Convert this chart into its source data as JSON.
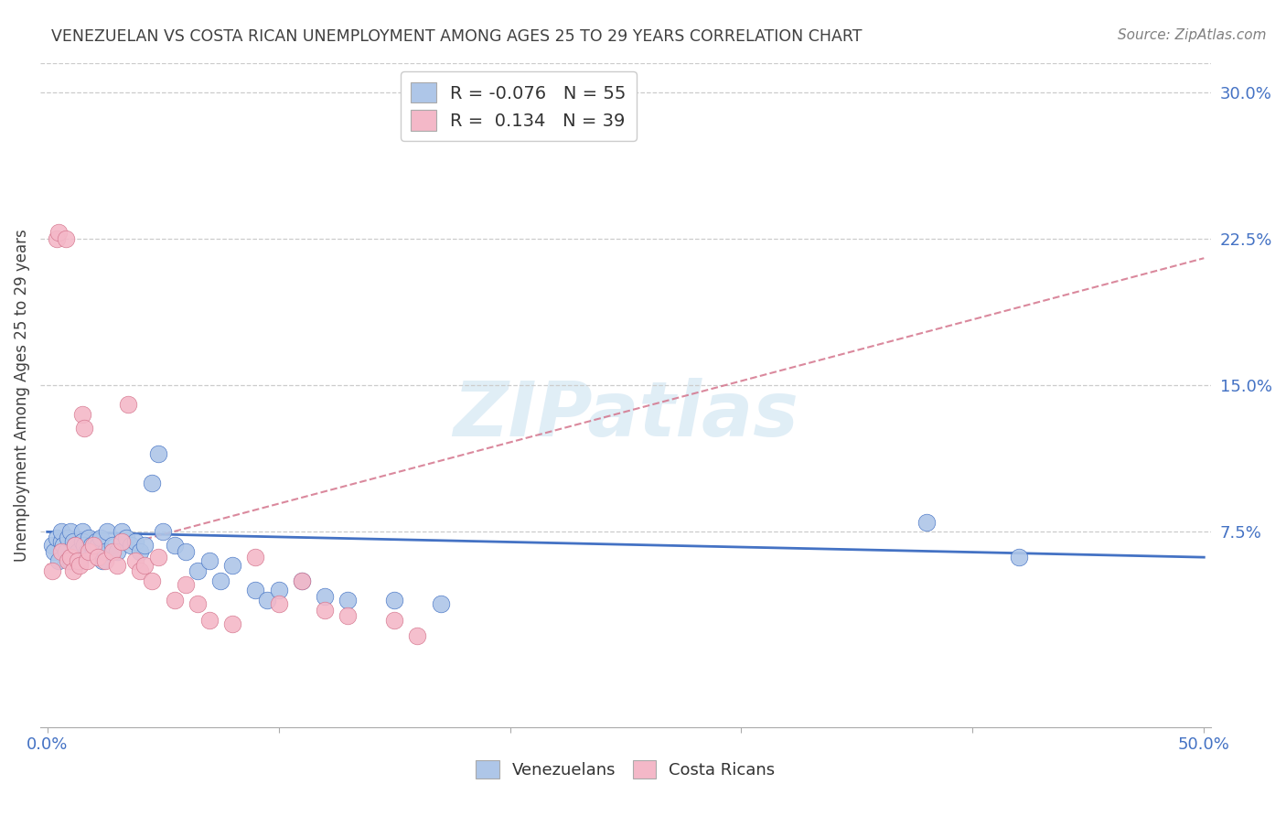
{
  "title": "VENEZUELAN VS COSTA RICAN UNEMPLOYMENT AMONG AGES 25 TO 29 YEARS CORRELATION CHART",
  "source": "Source: ZipAtlas.com",
  "ylabel": "Unemployment Among Ages 25 to 29 years",
  "xlim": [
    -0.003,
    0.503
  ],
  "ylim": [
    -0.025,
    0.315
  ],
  "xtick_positions": [
    0.0,
    0.1,
    0.2,
    0.3,
    0.4,
    0.5
  ],
  "xtick_labels": [
    "0.0%",
    "",
    "",
    "",
    "",
    "50.0%"
  ],
  "ytick_right_labels": [
    "7.5%",
    "15.0%",
    "22.5%",
    "30.0%"
  ],
  "ytick_right_values": [
    0.075,
    0.15,
    0.225,
    0.3
  ],
  "venezuelan_color": "#aec6e8",
  "costa_rican_color": "#f4b8c8",
  "trend_venezuelan_color": "#4472c4",
  "trend_costa_rican_color": "#d4748c",
  "R_venezuelan": -0.076,
  "N_venezuelan": 55,
  "R_costa_rican": 0.134,
  "N_costa_rican": 39,
  "watermark": "ZIPatlas",
  "background_color": "#ffffff",
  "grid_color": "#cccccc",
  "tick_color": "#4472c4",
  "title_color": "#404040",
  "source_color": "#808080",
  "ylabel_color": "#404040",
  "venezuelan_x": [
    0.002,
    0.003,
    0.004,
    0.005,
    0.006,
    0.006,
    0.007,
    0.008,
    0.009,
    0.01,
    0.01,
    0.011,
    0.012,
    0.013,
    0.014,
    0.015,
    0.015,
    0.016,
    0.017,
    0.018,
    0.019,
    0.02,
    0.021,
    0.022,
    0.023,
    0.024,
    0.025,
    0.026,
    0.028,
    0.03,
    0.032,
    0.034,
    0.036,
    0.038,
    0.04,
    0.042,
    0.045,
    0.048,
    0.05,
    0.055,
    0.06,
    0.065,
    0.07,
    0.075,
    0.08,
    0.09,
    0.095,
    0.1,
    0.11,
    0.12,
    0.13,
    0.15,
    0.17,
    0.38,
    0.42
  ],
  "venezuelan_y": [
    0.068,
    0.065,
    0.072,
    0.06,
    0.07,
    0.075,
    0.068,
    0.065,
    0.072,
    0.06,
    0.075,
    0.07,
    0.068,
    0.065,
    0.06,
    0.075,
    0.07,
    0.068,
    0.065,
    0.072,
    0.068,
    0.065,
    0.07,
    0.068,
    0.072,
    0.06,
    0.065,
    0.075,
    0.068,
    0.065,
    0.075,
    0.072,
    0.068,
    0.07,
    0.065,
    0.068,
    0.1,
    0.115,
    0.075,
    0.068,
    0.065,
    0.055,
    0.06,
    0.05,
    0.058,
    0.045,
    0.04,
    0.045,
    0.05,
    0.042,
    0.04,
    0.04,
    0.038,
    0.08,
    0.062
  ],
  "costa_rican_x": [
    0.002,
    0.004,
    0.005,
    0.006,
    0.008,
    0.009,
    0.01,
    0.011,
    0.012,
    0.013,
    0.014,
    0.015,
    0.016,
    0.017,
    0.018,
    0.02,
    0.022,
    0.025,
    0.028,
    0.03,
    0.032,
    0.035,
    0.038,
    0.04,
    0.042,
    0.045,
    0.048,
    0.055,
    0.06,
    0.065,
    0.07,
    0.08,
    0.09,
    0.1,
    0.11,
    0.12,
    0.13,
    0.15,
    0.16
  ],
  "costa_rican_y": [
    0.055,
    0.225,
    0.228,
    0.065,
    0.225,
    0.06,
    0.062,
    0.055,
    0.068,
    0.06,
    0.058,
    0.135,
    0.128,
    0.06,
    0.065,
    0.068,
    0.062,
    0.06,
    0.065,
    0.058,
    0.07,
    0.14,
    0.06,
    0.055,
    0.058,
    0.05,
    0.062,
    0.04,
    0.048,
    0.038,
    0.03,
    0.028,
    0.062,
    0.038,
    0.05,
    0.035,
    0.032,
    0.03,
    0.022
  ],
  "ven_trend_x0": 0.0,
  "ven_trend_x1": 0.5,
  "ven_trend_y0": 0.075,
  "ven_trend_y1": 0.062,
  "cr_trend_x0": 0.0,
  "cr_trend_x1": 0.5,
  "cr_trend_y0": 0.058,
  "cr_trend_y1": 0.215
}
